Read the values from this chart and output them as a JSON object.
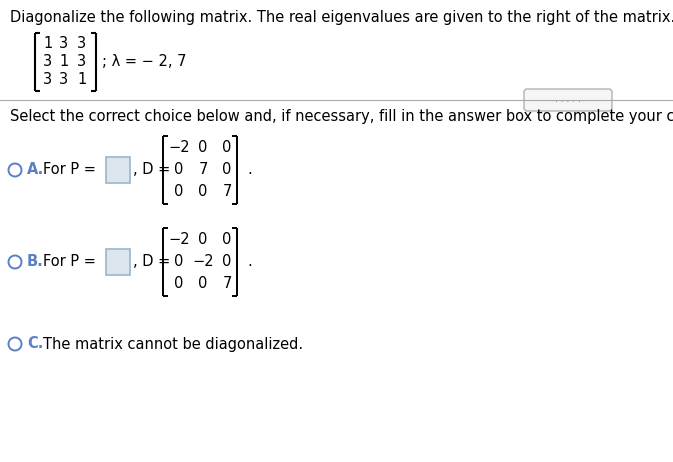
{
  "title_text": "Diagonalize the following matrix. The real eigenvalues are given to the right of the matrix.",
  "eigenvalue_text": "; λ = − 2, 7",
  "instruction_text": "Select the correct choice below and, if necessary, fill in the answer box to complete your choice.",
  "choice_A_label": "A.",
  "choice_A_text": "For P =",
  "choice_A_D_text": ", D =",
  "choice_A_matrix": [
    [
      "−2",
      "0",
      "0"
    ],
    [
      "0",
      "7",
      "0"
    ],
    [
      "0",
      "0",
      "7"
    ]
  ],
  "choice_B_label": "B.",
  "choice_B_text": "For P =",
  "choice_B_D_text": ", D =",
  "choice_B_matrix": [
    [
      "−2",
      "0",
      "0"
    ],
    [
      "0",
      "−2",
      "0"
    ],
    [
      "0",
      "0",
      "7"
    ]
  ],
  "choice_C_label": "C.",
  "choice_C_text": "The matrix cannot be diagonalized.",
  "circle_color": "#5b7fc4",
  "label_color": "#5b7fc4",
  "text_color": "#000000",
  "bg_color": "#ffffff",
  "font_size": 10.5,
  "matrix_font_size": 10.5,
  "answer_box_color": "#9ab4cc",
  "answer_box_fill": "#dce6ef"
}
